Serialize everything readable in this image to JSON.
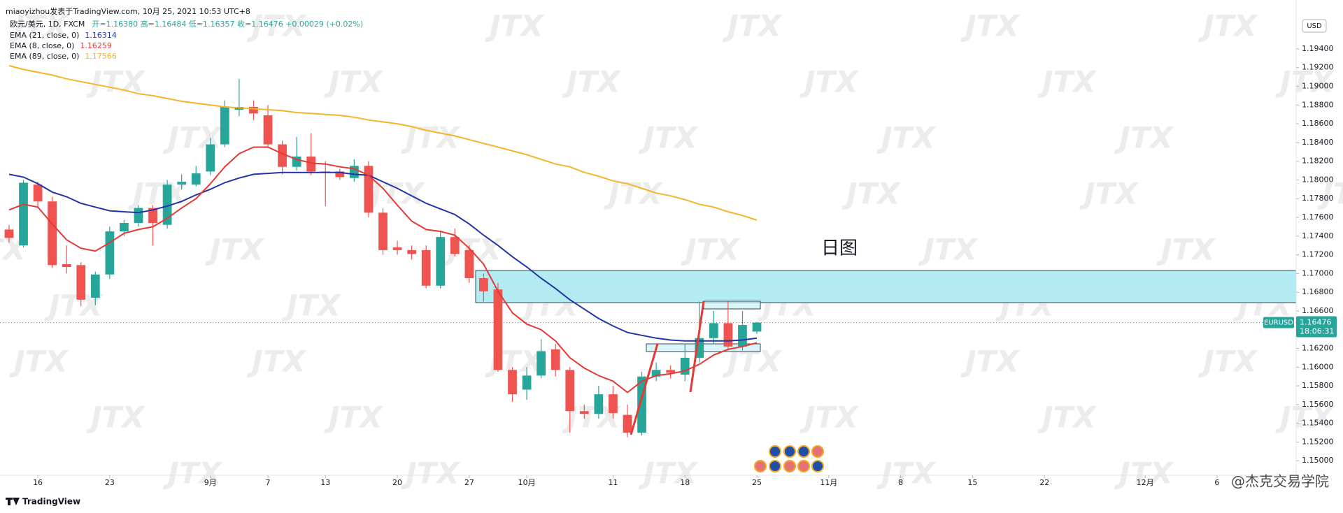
{
  "chart_data": {
    "type": "candlestick",
    "title": "miaoyizhou发表于TradingView.com, 10月 25, 2021 10:53 UTC+8",
    "symbol_legend": "欧元/美元, 1D, FXCM",
    "ohlc_legend": "开=1.16380 高=1.16484 低=1.16357 收=1.16476 +0.00029 (+0.02%)",
    "x": [
      -2,
      -1,
      0,
      1,
      2,
      3,
      4,
      5,
      6,
      7,
      8,
      9,
      10,
      11,
      12,
      13,
      14,
      15,
      16,
      17,
      18,
      19,
      20,
      21,
      22,
      23,
      24,
      25,
      26,
      27,
      28,
      29,
      30,
      31,
      32,
      33,
      34,
      35,
      36,
      37,
      38,
      39,
      40,
      41,
      42,
      43,
      44,
      45,
      46,
      47,
      48,
      49,
      50
    ],
    "open": [
      1.1747,
      1.173,
      1.1795,
      1.1777,
      1.171,
      1.1709,
      1.1674,
      1.1699,
      1.1745,
      1.1754,
      1.177,
      1.1752,
      1.1795,
      1.1795,
      1.1809,
      1.1838,
      1.1875,
      1.1878,
      1.1869,
      1.1838,
      1.1814,
      1.1825,
      1.1809,
      1.1809,
      1.1802,
      1.1815,
      1.1765,
      1.1728,
      1.1725,
      1.1725,
      1.1687,
      1.1739,
      1.1725,
      1.1695,
      1.1683,
      1.1597,
      1.1576,
      1.1591,
      1.1619,
      1.1597,
      1.1553,
      1.155,
      1.1571,
      1.1549,
      1.153,
      1.159,
      1.1597,
      1.1592,
      1.161,
      1.1631,
      1.1647,
      1.1622,
      1.1638
    ],
    "high": [
      1.1752,
      1.18,
      1.1798,
      1.1782,
      1.173,
      1.1712,
      1.1702,
      1.175,
      1.1757,
      1.1773,
      1.1773,
      1.18,
      1.1806,
      1.1815,
      1.1845,
      1.1885,
      1.1908,
      1.1885,
      1.188,
      1.1842,
      1.1846,
      1.185,
      1.182,
      1.1812,
      1.1822,
      1.182,
      1.177,
      1.1735,
      1.173,
      1.173,
      1.1745,
      1.1748,
      1.173,
      1.17,
      1.169,
      1.16,
      1.16,
      1.163,
      1.1625,
      1.16,
      1.156,
      1.158,
      1.158,
      1.156,
      1.1595,
      1.1605,
      1.1602,
      1.1625,
      1.167,
      1.166,
      1.167,
      1.166,
      1.16484
    ],
    "low": [
      1.1733,
      1.1728,
      1.177,
      1.1706,
      1.17,
      1.1665,
      1.1666,
      1.1694,
      1.174,
      1.175,
      1.173,
      1.1748,
      1.179,
      1.1793,
      1.1805,
      1.1835,
      1.1868,
      1.1864,
      1.1835,
      1.1806,
      1.181,
      1.1805,
      1.1772,
      1.18,
      1.1798,
      1.176,
      1.172,
      1.172,
      1.1715,
      1.1684,
      1.1684,
      1.1718,
      1.169,
      1.167,
      1.1595,
      1.1563,
      1.1565,
      1.1588,
      1.159,
      1.153,
      1.1545,
      1.1545,
      1.1545,
      1.1525,
      1.1527,
      1.1585,
      1.1588,
      1.1585,
      1.1605,
      1.1625,
      1.1618,
      1.1618,
      1.16357
    ],
    "close": [
      1.1738,
      1.1797,
      1.1777,
      1.1709,
      1.1707,
      1.1672,
      1.1699,
      1.1745,
      1.1754,
      1.177,
      1.1754,
      1.1795,
      1.1798,
      1.1807,
      1.1838,
      1.1878,
      1.1878,
      1.1871,
      1.1838,
      1.1814,
      1.1825,
      1.1809,
      1.1808,
      1.1803,
      1.1815,
      1.1765,
      1.1725,
      1.1725,
      1.1721,
      1.1687,
      1.1739,
      1.1721,
      1.1695,
      1.1681,
      1.1597,
      1.1571,
      1.1591,
      1.1617,
      1.1597,
      1.1553,
      1.155,
      1.1571,
      1.1551,
      1.153,
      1.159,
      1.1597,
      1.1594,
      1.161,
      1.1631,
      1.1647,
      1.1622,
      1.1645,
      1.16476
    ],
    "up_color": "#26a69a",
    "down_color": "#ef5350",
    "series": [
      {
        "name": "EMA (21, close, 0)",
        "legend_value": "1.16314",
        "color": "#1f35a8",
        "values": [
          1.1806,
          1.1803,
          1.1796,
          1.1787,
          1.1782,
          1.1775,
          1.1771,
          1.1767,
          1.1766,
          1.1765,
          1.1768,
          1.1772,
          1.1777,
          1.1784,
          1.179,
          1.1797,
          1.1802,
          1.1806,
          1.1807,
          1.1808,
          1.1808,
          1.1808,
          1.1808,
          1.1808,
          1.1806,
          1.1805,
          1.1798,
          1.1791,
          1.1783,
          1.1775,
          1.1769,
          1.1763,
          1.1753,
          1.1741,
          1.173,
          1.1718,
          1.1707,
          1.1695,
          1.1684,
          1.1672,
          1.1662,
          1.1652,
          1.1644,
          1.1637,
          1.1634,
          1.1631,
          1.1629,
          1.1628,
          1.1628,
          1.1628,
          1.1628,
          1.1629,
          1.1631
        ]
      },
      {
        "name": "EMA (8, close, 0)",
        "legend_value": "1.16259",
        "color": "#e53935",
        "values": [
          1.1768,
          1.1774,
          1.1771,
          1.1753,
          1.1736,
          1.1727,
          1.1724,
          1.1733,
          1.1743,
          1.1747,
          1.175,
          1.1759,
          1.177,
          1.178,
          1.1796,
          1.1814,
          1.1828,
          1.1835,
          1.1835,
          1.1828,
          1.1822,
          1.1818,
          1.1817,
          1.1814,
          1.1812,
          1.1805,
          1.1791,
          1.1773,
          1.1756,
          1.1747,
          1.1745,
          1.1741,
          1.1727,
          1.171,
          1.1681,
          1.1658,
          1.1646,
          1.164,
          1.1628,
          1.161,
          1.1599,
          1.1591,
          1.1585,
          1.1573,
          1.1585,
          1.1591,
          1.1593,
          1.1596,
          1.1603,
          1.1613,
          1.1619,
          1.1622,
          1.1626
        ]
      },
      {
        "name": "EMA (89, close, 0)",
        "legend_value": "1.17566",
        "color": "#f5b42a",
        "values": [
          1.1922,
          1.1918,
          1.1915,
          1.1912,
          1.1908,
          1.1905,
          1.1902,
          1.1899,
          1.1896,
          1.1892,
          1.189,
          1.1887,
          1.1884,
          1.1882,
          1.188,
          1.1878,
          1.1877,
          1.1876,
          1.1875,
          1.1874,
          1.1872,
          1.1871,
          1.187,
          1.1869,
          1.1867,
          1.1864,
          1.1862,
          1.186,
          1.1857,
          1.1853,
          1.185,
          1.1847,
          1.1843,
          1.1839,
          1.1835,
          1.1831,
          1.1827,
          1.1822,
          1.1817,
          1.1814,
          1.1808,
          1.1804,
          1.1799,
          1.1796,
          1.1791,
          1.1786,
          1.1783,
          1.1779,
          1.1774,
          1.1771,
          1.1766,
          1.1762,
          1.1757
        ]
      }
    ],
    "xlim": [
      -2.63,
      87.5
    ],
    "xticks": [
      {
        "value": 0,
        "label": "16"
      },
      {
        "value": 5,
        "label": "23"
      },
      {
        "value": 12,
        "label": "9月"
      },
      {
        "value": 16,
        "label": "7"
      },
      {
        "value": 20,
        "label": "13"
      },
      {
        "value": 25,
        "label": "20"
      },
      {
        "value": 30,
        "label": "27"
      },
      {
        "value": 34,
        "label": "10月"
      },
      {
        "value": 40,
        "label": "11"
      },
      {
        "value": 45,
        "label": "18"
      },
      {
        "value": 50,
        "label": "25"
      },
      {
        "value": 55,
        "label": "11月"
      },
      {
        "value": 60,
        "label": "8"
      },
      {
        "value": 65,
        "label": "15"
      },
      {
        "value": 70,
        "label": "22"
      },
      {
        "value": 77,
        "label": "12月"
      },
      {
        "value": 82,
        "label": "6"
      }
    ],
    "ylim": [
      1.14845,
      1.19922
    ],
    "yticks": [
      {
        "value": 1.15,
        "label": "1.15000"
      },
      {
        "value": 1.152,
        "label": "1.15200"
      },
      {
        "value": 1.154,
        "label": "1.15400"
      },
      {
        "value": 1.156,
        "label": "1.15600"
      },
      {
        "value": 1.158,
        "label": "1.15800"
      },
      {
        "value": 1.16,
        "label": "1.16000"
      },
      {
        "value": 1.162,
        "label": "1.16200"
      },
      {
        "value": 1.164,
        "label": "1.16400"
      },
      {
        "value": 1.166,
        "label": "1.16600"
      },
      {
        "value": 1.168,
        "label": "1.16800"
      },
      {
        "value": 1.17,
        "label": "1.17000"
      },
      {
        "value": 1.172,
        "label": "1.17200"
      },
      {
        "value": 1.174,
        "label": "1.17400"
      },
      {
        "value": 1.176,
        "label": "1.17600"
      },
      {
        "value": 1.178,
        "label": "1.17800"
      },
      {
        "value": 1.18,
        "label": "1.18000"
      },
      {
        "value": 1.182,
        "label": "1.18200"
      },
      {
        "value": 1.184,
        "label": "1.18400"
      },
      {
        "value": 1.186,
        "label": "1.18600"
      },
      {
        "value": 1.188,
        "label": "1.18800"
      },
      {
        "value": 1.19,
        "label": "1.19000"
      },
      {
        "value": 1.192,
        "label": "1.19200"
      },
      {
        "value": 1.194,
        "label": "1.19400"
      }
    ],
    "grid": false,
    "currency": "USD",
    "last_price": 1.16476,
    "symbol_tag": "EURUSD",
    "price_tag": "1.16476",
    "countdown": "18:06:31",
    "annotation": "日图",
    "watermark": "JTX",
    "brand": "TradingView",
    "credit": "@杰克交易学院"
  }
}
